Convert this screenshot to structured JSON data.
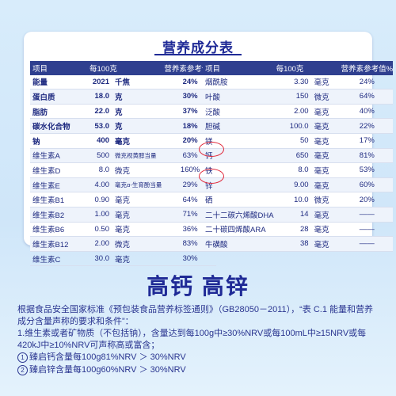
{
  "title": "营养成分表",
  "left_table": {
    "headers": [
      "项目",
      "每100克",
      "营养素参考值%"
    ],
    "rows": [
      {
        "name": "能量",
        "amount": "2021",
        "unit": "千焦",
        "nrv": "24%",
        "bold": true
      },
      {
        "name": "蛋白质",
        "amount": "18.0",
        "unit": "克",
        "nrv": "30%",
        "bold": true
      },
      {
        "name": "脂肪",
        "amount": "22.0",
        "unit": "克",
        "nrv": "37%",
        "bold": true
      },
      {
        "name": "碳水化合物",
        "amount": "53.0",
        "unit": "克",
        "nrv": "18%",
        "bold": true
      },
      {
        "name": "钠",
        "amount": "400",
        "unit": "毫克",
        "nrv": "20%",
        "bold": true
      },
      {
        "name": "维生素A",
        "amount": "500",
        "unit": "微克视黄醇当量",
        "nrv": "63%",
        "bold": false
      },
      {
        "name": "维生素D",
        "amount": "8.0",
        "unit": "微克",
        "nrv": "160%",
        "bold": false
      },
      {
        "name": "维生素E",
        "amount": "4.00",
        "unit": "毫克α-生育酚当量",
        "nrv": "29%",
        "bold": false
      },
      {
        "name": "维生素B1",
        "amount": "0.90",
        "unit": "毫克",
        "nrv": "64%",
        "bold": false
      },
      {
        "name": "维生素B2",
        "amount": "1.00",
        "unit": "毫克",
        "nrv": "71%",
        "bold": false
      },
      {
        "name": "维生素B6",
        "amount": "0.50",
        "unit": "毫克",
        "nrv": "36%",
        "bold": false
      },
      {
        "name": "维生素B12",
        "amount": "2.00",
        "unit": "微克",
        "nrv": "83%",
        "bold": false
      },
      {
        "name": "维生素C",
        "amount": "30.0",
        "unit": "毫克",
        "nrv": "30%",
        "bold": false
      }
    ]
  },
  "right_table": {
    "headers": [
      "项目",
      "每100克",
      "营养素参考值%"
    ],
    "rows": [
      {
        "name": "烟酰胺",
        "amount": "3.30",
        "unit": "毫克",
        "nrv": "24%"
      },
      {
        "name": "叶酸",
        "amount": "150",
        "unit": "微克",
        "nrv": "64%"
      },
      {
        "name": "泛酸",
        "amount": "2.00",
        "unit": "毫克",
        "nrv": "40%"
      },
      {
        "name": "胆碱",
        "amount": "100.0",
        "unit": "毫克",
        "nrv": "22%"
      },
      {
        "name": "镁",
        "amount": "50",
        "unit": "毫克",
        "nrv": "17%"
      },
      {
        "name": "钙",
        "amount": "650",
        "unit": "毫克",
        "nrv": "81%"
      },
      {
        "name": "铁",
        "amount": "8.0",
        "unit": "毫克",
        "nrv": "53%"
      },
      {
        "name": "锌",
        "amount": "9.00",
        "unit": "毫克",
        "nrv": "60%"
      },
      {
        "name": "硒",
        "amount": "10.0",
        "unit": "微克",
        "nrv": "20%"
      },
      {
        "name": "二十二碳六烯酸DHA",
        "amount": "14",
        "unit": "毫克",
        "nrv": "——"
      },
      {
        "name": "二十碳四烯酸ARA",
        "amount": "28",
        "unit": "毫克",
        "nrv": "——"
      },
      {
        "name": "牛磺酸",
        "amount": "38",
        "unit": "毫克",
        "nrv": "——"
      }
    ]
  },
  "headline": "高钙 高锌",
  "paragraph1": "根据食品安全国家标准《预包装食品营养标签通则》（GB28050－2011），“表 C.1 能量和营养成分含量声称的要求和条件”：",
  "paragraph2": "1.维生素或者矿物质（不包括钠），含量达到每100g中≥30%NRV或每100mL中≥15NRV或每420kJ中≥10%NRV可声称高或富含；",
  "note1_num": "1",
  "note1": "臻启钙含量每100g81%NRV ＞ 30%NRV",
  "note2_num": "2",
  "note2": "臻启锌含量每100g60%NRV ＞ 30%NRV"
}
